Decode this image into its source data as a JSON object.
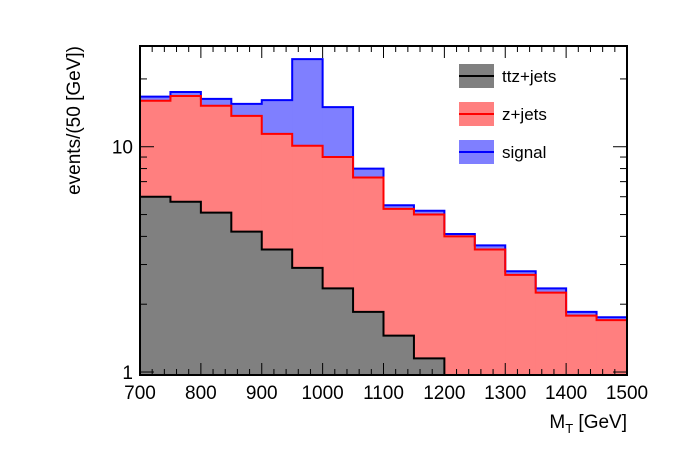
{
  "chart_data": {
    "type": "stacked-histogram",
    "y_scale": "log",
    "xlabel_main": "M",
    "xlabel_sub": "T",
    "xlabel_unit": " [GeV]",
    "ylabel": "events/(50 [GeV])",
    "xlim": [
      700,
      1500
    ],
    "ylim": [
      0.97,
      28
    ],
    "bin_width": 50,
    "x_ticks": [
      "700",
      "800",
      "900",
      "1000",
      "1100",
      "1200",
      "1300",
      "1400",
      "1500"
    ],
    "y_tick_labels": [
      {
        "value": 1,
        "label": "1"
      },
      {
        "value": 10,
        "label": "10"
      }
    ],
    "bin_edges": [
      700,
      750,
      800,
      850,
      900,
      950,
      1000,
      1050,
      1100,
      1150,
      1200,
      1250,
      1300,
      1350,
      1400,
      1450,
      1500
    ],
    "series": [
      {
        "name": "ttz+jets",
        "fill": "#808080",
        "line": "#000000",
        "values": [
          6.0,
          5.7,
          5.1,
          4.2,
          3.5,
          2.9,
          2.35,
          1.85,
          1.45,
          1.15,
          0.9,
          0.9,
          0.9,
          0.9,
          0.9,
          0.9
        ]
      },
      {
        "name": "z+jets",
        "fill": "#ff7f7f",
        "line": "#ff0000",
        "values": [
          16.0,
          16.8,
          15.2,
          13.7,
          11.4,
          10.1,
          9.0,
          7.3,
          5.3,
          5.0,
          4.0,
          3.5,
          2.7,
          2.25,
          1.78,
          1.7
        ]
      },
      {
        "name": "signal",
        "fill": "#7f7fff",
        "line": "#0000ff",
        "values": [
          16.7,
          17.5,
          16.3,
          15.5,
          16.1,
          24.5,
          15.0,
          8.0,
          5.5,
          5.2,
          4.1,
          3.65,
          2.8,
          2.35,
          1.85,
          1.75
        ]
      }
    ]
  }
}
